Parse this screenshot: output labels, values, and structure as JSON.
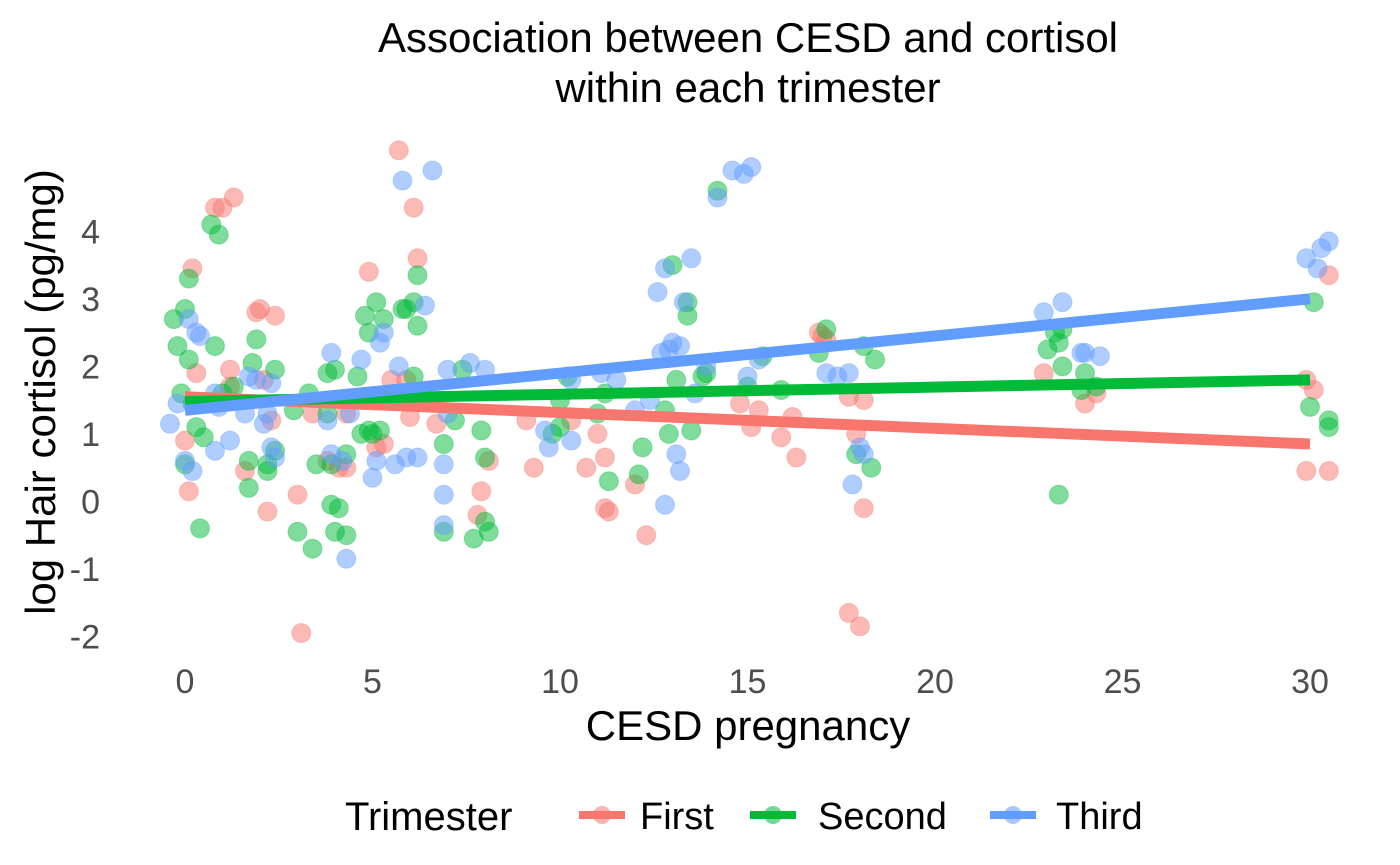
{
  "chart_data": {
    "type": "scatter",
    "title_lines": [
      "Association between CESD and cortisol",
      "within each trimester"
    ],
    "xlabel": "CESD pregnancy",
    "ylabel": "log Hair cortisol (pg/mg)",
    "xlim": [
      -0.8,
      30.8
    ],
    "ylim": [
      -2.2,
      5.5
    ],
    "x_ticks": [
      0,
      5,
      10,
      15,
      20,
      25,
      30
    ],
    "y_ticks": [
      -2,
      -1,
      0,
      1,
      2,
      3,
      4
    ],
    "grid": false,
    "legend": {
      "title": "Trimester",
      "position": "bottom"
    },
    "series": [
      {
        "name": "First",
        "color": "#F8766D",
        "fit": {
          "x": [
            0,
            30
          ],
          "y": [
            1.55,
            0.85
          ]
        },
        "points": [
          [
            0,
            0.9
          ],
          [
            0.2,
            3.45
          ],
          [
            0.3,
            1.9
          ],
          [
            0.1,
            0.15
          ],
          [
            0.8,
            4.35
          ],
          [
            1.0,
            4.35
          ],
          [
            1.3,
            4.5
          ],
          [
            1.2,
            1.95
          ],
          [
            1.2,
            1.7
          ],
          [
            1.6,
            0.45
          ],
          [
            1.9,
            2.8
          ],
          [
            2.0,
            2.85
          ],
          [
            2.2,
            -0.15
          ],
          [
            2.3,
            1.2
          ],
          [
            2.4,
            2.75
          ],
          [
            2.1,
            1.8
          ],
          [
            3.0,
            0.1
          ],
          [
            3.1,
            -1.95
          ],
          [
            3.4,
            1.3
          ],
          [
            3.8,
            0.6
          ],
          [
            4.1,
            0.5
          ],
          [
            4.3,
            1.3
          ],
          [
            4.3,
            0.5
          ],
          [
            4.9,
            3.4
          ],
          [
            5.1,
            0.8
          ],
          [
            5.3,
            0.85
          ],
          [
            5.5,
            1.8
          ],
          [
            5.7,
            5.2
          ],
          [
            5.9,
            1.8
          ],
          [
            6.0,
            1.25
          ],
          [
            6.1,
            4.35
          ],
          [
            6.2,
            3.6
          ],
          [
            6.7,
            1.15
          ],
          [
            7.8,
            -0.2
          ],
          [
            7.9,
            0.15
          ],
          [
            8.1,
            0.6
          ],
          [
            9.1,
            1.2
          ],
          [
            9.3,
            0.5
          ],
          [
            10.3,
            1.2
          ],
          [
            10.7,
            0.5
          ],
          [
            11.0,
            1.0
          ],
          [
            11.2,
            0.65
          ],
          [
            11.2,
            -0.1
          ],
          [
            11.3,
            -0.15
          ],
          [
            12.0,
            0.25
          ],
          [
            12.3,
            -0.5
          ],
          [
            14.8,
            1.45
          ],
          [
            15.1,
            1.1
          ],
          [
            15.3,
            1.35
          ],
          [
            15.9,
            0.95
          ],
          [
            16.2,
            1.25
          ],
          [
            16.3,
            0.65
          ],
          [
            16.9,
            2.5
          ],
          [
            17.0,
            2.45
          ],
          [
            17.1,
            2.4
          ],
          [
            17.7,
            1.55
          ],
          [
            17.7,
            -1.65
          ],
          [
            17.9,
            1.0
          ],
          [
            18.0,
            -1.85
          ],
          [
            18.1,
            1.5
          ],
          [
            18.1,
            -0.1
          ],
          [
            22.9,
            1.9
          ],
          [
            24.0,
            1.45
          ],
          [
            24.3,
            1.6
          ],
          [
            29.9,
            1.8
          ],
          [
            29.9,
            0.45
          ],
          [
            30.1,
            1.65
          ],
          [
            30.5,
            0.45
          ],
          [
            30.5,
            3.35
          ]
        ]
      },
      {
        "name": "Second",
        "color": "#00BA38",
        "fit": {
          "x": [
            0,
            30
          ],
          "y": [
            1.48,
            1.8
          ]
        },
        "points": [
          [
            -0.3,
            2.7
          ],
          [
            -0.2,
            2.3
          ],
          [
            -0.1,
            1.6
          ],
          [
            0,
            0.55
          ],
          [
            0,
            2.85
          ],
          [
            0.1,
            3.3
          ],
          [
            0.1,
            2.1
          ],
          [
            0.2,
            1.45
          ],
          [
            0.3,
            1.1
          ],
          [
            0.4,
            -0.4
          ],
          [
            0.5,
            0.95
          ],
          [
            0.7,
            4.1
          ],
          [
            0.8,
            2.3
          ],
          [
            0.9,
            3.95
          ],
          [
            1.0,
            1.6
          ],
          [
            1.3,
            1.7
          ],
          [
            1.7,
            0.2
          ],
          [
            1.7,
            0.6
          ],
          [
            1.8,
            2.05
          ],
          [
            1.9,
            2.4
          ],
          [
            2.2,
            0.55
          ],
          [
            2.2,
            0.45
          ],
          [
            2.4,
            1.95
          ],
          [
            2.4,
            0.75
          ],
          [
            2.9,
            1.35
          ],
          [
            3.0,
            -0.45
          ],
          [
            3.3,
            1.6
          ],
          [
            3.4,
            -0.7
          ],
          [
            3.5,
            0.55
          ],
          [
            3.8,
            1.9
          ],
          [
            3.8,
            1.3
          ],
          [
            3.9,
            -0.05
          ],
          [
            3.9,
            0.55
          ],
          [
            4.0,
            1.95
          ],
          [
            4.0,
            -0.45
          ],
          [
            4.1,
            -0.1
          ],
          [
            4.3,
            0.7
          ],
          [
            4.3,
            -0.5
          ],
          [
            4.6,
            1.85
          ],
          [
            4.7,
            1.0
          ],
          [
            4.8,
            2.75
          ],
          [
            4.9,
            2.5
          ],
          [
            4.9,
            1.05
          ],
          [
            5.0,
            1.0
          ],
          [
            5.1,
            2.95
          ],
          [
            5.2,
            1.05
          ],
          [
            5.3,
            2.7
          ],
          [
            5.4,
            1.5
          ],
          [
            5.8,
            2.85
          ],
          [
            5.9,
            2.85
          ],
          [
            6.1,
            1.85
          ],
          [
            6.1,
            2.95
          ],
          [
            6.2,
            2.6
          ],
          [
            6.2,
            3.35
          ],
          [
            6.9,
            0.85
          ],
          [
            6.9,
            -0.45
          ],
          [
            7.2,
            1.2
          ],
          [
            7.4,
            1.95
          ],
          [
            7.7,
            -0.55
          ],
          [
            7.9,
            1.05
          ],
          [
            8.0,
            0.65
          ],
          [
            8.1,
            -0.45
          ],
          [
            8.0,
            -0.3
          ],
          [
            9.8,
            1.0
          ],
          [
            10.0,
            1.5
          ],
          [
            10.0,
            1.1
          ],
          [
            10.2,
            1.85
          ],
          [
            11.0,
            1.3
          ],
          [
            11.2,
            1.6
          ],
          [
            11.3,
            0.3
          ],
          [
            12.1,
            0.4
          ],
          [
            12.2,
            0.8
          ],
          [
            12.8,
            1.35
          ],
          [
            12.9,
            1.0
          ],
          [
            13.0,
            3.5
          ],
          [
            13.1,
            1.8
          ],
          [
            13.4,
            2.75
          ],
          [
            13.4,
            2.95
          ],
          [
            13.5,
            1.05
          ],
          [
            13.8,
            1.85
          ],
          [
            13.9,
            1.9
          ],
          [
            14.2,
            4.6
          ],
          [
            15.0,
            1.7
          ],
          [
            15.4,
            2.15
          ],
          [
            15.9,
            1.65
          ],
          [
            16.9,
            2.2
          ],
          [
            17.1,
            2.55
          ],
          [
            17.9,
            0.7
          ],
          [
            18.1,
            2.3
          ],
          [
            18.3,
            0.5
          ],
          [
            18.4,
            2.1
          ],
          [
            23.0,
            2.25
          ],
          [
            23.2,
            2.5
          ],
          [
            23.3,
            2.35
          ],
          [
            23.3,
            0.1
          ],
          [
            23.4,
            2.55
          ],
          [
            23.4,
            2.0
          ],
          [
            23.9,
            1.65
          ],
          [
            24.0,
            1.9
          ],
          [
            24.3,
            1.7
          ],
          [
            30.0,
            1.4
          ],
          [
            30.1,
            2.95
          ],
          [
            30.5,
            1.2
          ],
          [
            30.5,
            1.1
          ]
        ]
      },
      {
        "name": "Third",
        "color": "#619CFF",
        "fit": {
          "x": [
            0,
            30
          ],
          "y": [
            1.35,
            3.0
          ]
        },
        "points": [
          [
            -0.4,
            1.15
          ],
          [
            -0.2,
            1.45
          ],
          [
            0,
            0.6
          ],
          [
            0.1,
            2.7
          ],
          [
            0.2,
            0.45
          ],
          [
            0.3,
            2.5
          ],
          [
            0.4,
            2.45
          ],
          [
            0.8,
            0.75
          ],
          [
            0.8,
            1.6
          ],
          [
            0.9,
            1.4
          ],
          [
            1.2,
            0.9
          ],
          [
            1.6,
            1.3
          ],
          [
            1.7,
            1.85
          ],
          [
            1.9,
            1.8
          ],
          [
            2.1,
            1.15
          ],
          [
            2.2,
            1.3
          ],
          [
            2.3,
            1.75
          ],
          [
            2.3,
            0.8
          ],
          [
            2.4,
            0.65
          ],
          [
            3.8,
            1.2
          ],
          [
            3.9,
            2.2
          ],
          [
            3.9,
            0.7
          ],
          [
            4.2,
            0.6
          ],
          [
            4.3,
            -0.85
          ],
          [
            4.4,
            1.3
          ],
          [
            4.7,
            2.1
          ],
          [
            5.0,
            0.35
          ],
          [
            5.1,
            0.6
          ],
          [
            5.2,
            2.35
          ],
          [
            5.3,
            2.5
          ],
          [
            5.6,
            0.55
          ],
          [
            5.7,
            2.0
          ],
          [
            5.8,
            4.75
          ],
          [
            5.9,
            0.65
          ],
          [
            6.4,
            2.9
          ],
          [
            6.2,
            0.65
          ],
          [
            6.6,
            4.9
          ],
          [
            6.9,
            -0.35
          ],
          [
            6.9,
            0.1
          ],
          [
            6.9,
            0.55
          ],
          [
            7.0,
            1.95
          ],
          [
            7.0,
            1.3
          ],
          [
            7.6,
            2.05
          ],
          [
            8.0,
            1.95
          ],
          [
            9.6,
            1.05
          ],
          [
            9.7,
            0.8
          ],
          [
            10.3,
            0.9
          ],
          [
            10.3,
            1.8
          ],
          [
            11.1,
            1.9
          ],
          [
            11.5,
            1.8
          ],
          [
            12.0,
            1.35
          ],
          [
            12.4,
            1.5
          ],
          [
            12.6,
            3.1
          ],
          [
            12.7,
            2.2
          ],
          [
            12.8,
            3.45
          ],
          [
            12.8,
            -0.05
          ],
          [
            12.9,
            2.25
          ],
          [
            13.0,
            2.35
          ],
          [
            13.1,
            0.7
          ],
          [
            13.2,
            2.3
          ],
          [
            13.2,
            0.45
          ],
          [
            13.3,
            2.95
          ],
          [
            13.5,
            3.6
          ],
          [
            13.6,
            1.6
          ],
          [
            13.9,
            2.0
          ],
          [
            14.2,
            4.5
          ],
          [
            14.6,
            4.9
          ],
          [
            14.9,
            4.85
          ],
          [
            15.1,
            4.95
          ],
          [
            15.3,
            2.1
          ],
          [
            15.0,
            1.85
          ],
          [
            17.1,
            1.9
          ],
          [
            17.4,
            1.85
          ],
          [
            17.7,
            1.9
          ],
          [
            17.8,
            0.25
          ],
          [
            18.0,
            0.8
          ],
          [
            18.1,
            0.7
          ],
          [
            22.9,
            2.8
          ],
          [
            23.4,
            2.95
          ],
          [
            23.9,
            2.2
          ],
          [
            24.0,
            2.2
          ],
          [
            24.4,
            2.15
          ],
          [
            29.9,
            3.6
          ],
          [
            30.2,
            3.45
          ],
          [
            30.3,
            3.75
          ],
          [
            30.5,
            3.85
          ]
        ]
      }
    ]
  }
}
